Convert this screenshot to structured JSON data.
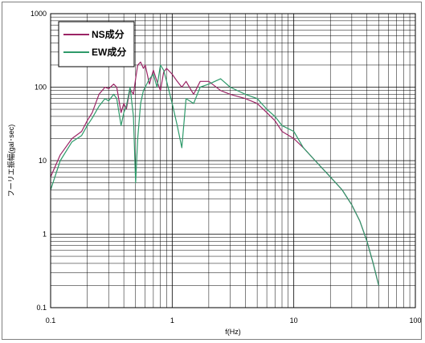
{
  "chart_data": {
    "type": "line",
    "xlabel": "f(Hz)",
    "ylabel": "フーリエ振幅(gal･sec)",
    "xscale": "log",
    "yscale": "log",
    "xlim": [
      0.1,
      100
    ],
    "ylim": [
      0.1,
      1000
    ],
    "x_ticks": [
      "0.1",
      "1",
      "10",
      "100"
    ],
    "y_ticks": [
      "1000",
      "100",
      "10",
      "1",
      "0.1"
    ],
    "grid": true,
    "legend_position": "top-left",
    "colors": {
      "NS成分": "#9b2465",
      "EW成分": "#2e9a6a"
    },
    "series": [
      {
        "name": "NS成分",
        "x": [
          0.1,
          0.12,
          0.15,
          0.18,
          0.2,
          0.22,
          0.25,
          0.28,
          0.3,
          0.33,
          0.35,
          0.38,
          0.4,
          0.42,
          0.45,
          0.48,
          0.5,
          0.52,
          0.55,
          0.58,
          0.6,
          0.65,
          0.7,
          0.75,
          0.8,
          0.85,
          0.9,
          1.0,
          1.1,
          1.2,
          1.3,
          1.5,
          1.7,
          2.0,
          2.5,
          3,
          4,
          5,
          6,
          7,
          8,
          10,
          12,
          15,
          20,
          25,
          30,
          35,
          40,
          45,
          50
        ],
        "y": [
          6,
          12,
          20,
          25,
          35,
          45,
          80,
          100,
          95,
          110,
          100,
          45,
          60,
          50,
          95,
          80,
          130,
          200,
          220,
          180,
          200,
          110,
          170,
          120,
          90,
          160,
          180,
          150,
          120,
          100,
          120,
          80,
          120,
          120,
          90,
          80,
          70,
          60,
          45,
          35,
          25,
          20,
          15,
          10,
          6,
          4,
          2.5,
          1.5,
          0.8,
          0.4,
          0.2
        ]
      },
      {
        "name": "EW成分",
        "x": [
          0.1,
          0.12,
          0.15,
          0.18,
          0.2,
          0.22,
          0.25,
          0.28,
          0.3,
          0.33,
          0.35,
          0.38,
          0.4,
          0.42,
          0.45,
          0.48,
          0.5,
          0.52,
          0.55,
          0.58,
          0.6,
          0.65,
          0.7,
          0.75,
          0.8,
          0.85,
          0.9,
          1.0,
          1.1,
          1.2,
          1.3,
          1.5,
          1.7,
          2.0,
          2.5,
          3,
          4,
          5,
          6,
          7,
          8,
          10,
          12,
          15,
          20,
          25,
          30,
          35,
          40,
          45,
          50
        ],
        "y": [
          4,
          10,
          18,
          22,
          30,
          38,
          55,
          70,
          65,
          80,
          70,
          30,
          45,
          55,
          100,
          40,
          5,
          20,
          60,
          90,
          100,
          130,
          150,
          100,
          200,
          170,
          120,
          60,
          30,
          15,
          70,
          60,
          100,
          110,
          130,
          100,
          80,
          70,
          50,
          40,
          30,
          25,
          15,
          10,
          6,
          4,
          2.5,
          1.5,
          0.8,
          0.4,
          0.2
        ]
      }
    ]
  }
}
